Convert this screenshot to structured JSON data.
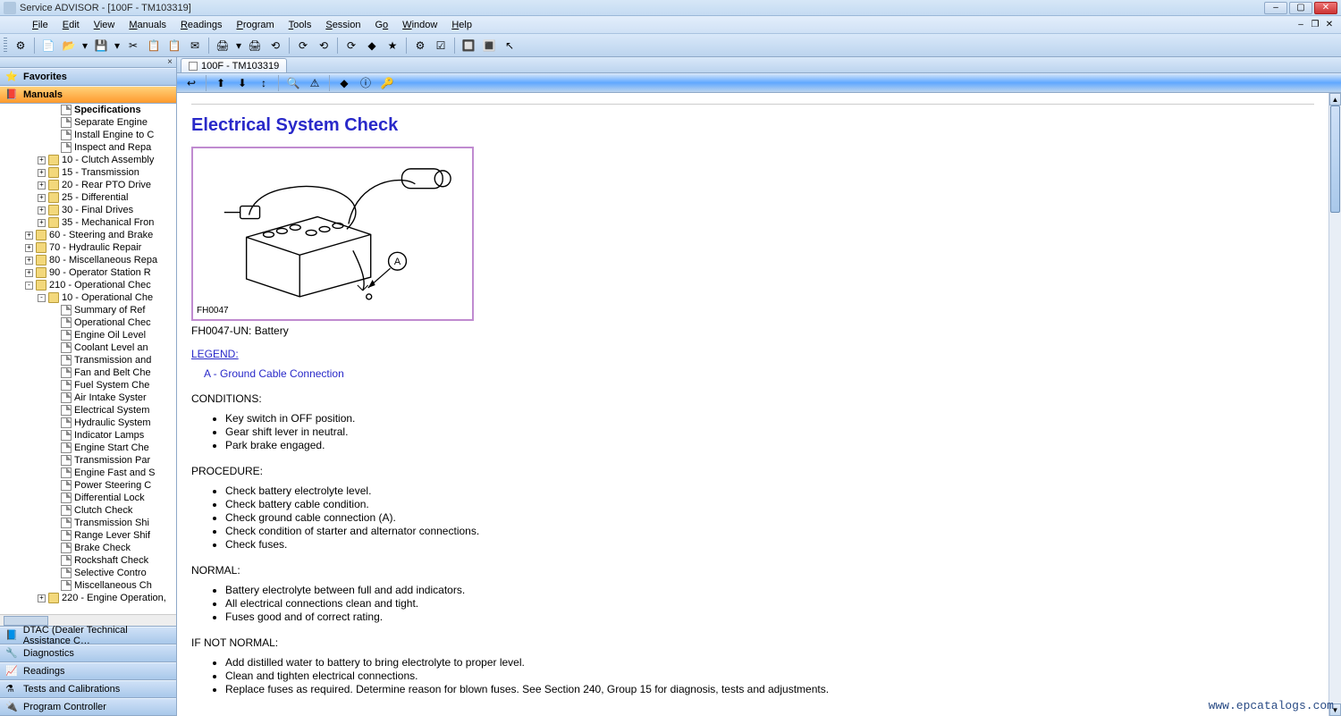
{
  "window": {
    "title": "Service ADVISOR - [100F - TM103319]",
    "min_icon": "–",
    "max_icon": "▢",
    "close_icon": "✕",
    "mdi_min": "–",
    "mdi_restore": "❐",
    "mdi_close": "✕"
  },
  "menu": {
    "items": [
      "File",
      "Edit",
      "View",
      "Manuals",
      "Readings",
      "Program",
      "Tools",
      "Session",
      "Go",
      "Window",
      "Help"
    ]
  },
  "toolbar": {
    "icons": [
      "⚙",
      "📄",
      "📂",
      "▾",
      "💾",
      "▾",
      "✂",
      "📋",
      "📋",
      "✉",
      "🖨",
      "▾",
      "🖨",
      "⟲",
      "⟳",
      "⟲",
      "⟳",
      "◆",
      "★",
      "⚙",
      "☑",
      "🔲",
      "🔳",
      "↖"
    ]
  },
  "left": {
    "close_glyph": "×",
    "accordions": {
      "favorites": {
        "label": "Favorites",
        "icon": "⭐"
      },
      "manuals": {
        "label": "Manuals",
        "icon": "📕"
      },
      "dtac": {
        "label": "DTAC (Dealer Technical Assistance C…",
        "icon": "📘"
      },
      "diagnostics": {
        "label": "Diagnostics",
        "icon": "🔧"
      },
      "readings": {
        "label": "Readings",
        "icon": "📈"
      },
      "tests": {
        "label": "Tests and Calibrations",
        "icon": "⚗"
      },
      "program": {
        "label": "Program Controller",
        "icon": "🔌"
      }
    },
    "tree": [
      {
        "d": 4,
        "t": "page",
        "exp": "",
        "bold": true,
        "label": "Specifications"
      },
      {
        "d": 4,
        "t": "page",
        "exp": "",
        "label": "Separate Engine"
      },
      {
        "d": 4,
        "t": "page",
        "exp": "",
        "label": "Install Engine to C"
      },
      {
        "d": 4,
        "t": "page",
        "exp": "",
        "label": "Inspect and Repa"
      },
      {
        "d": 3,
        "t": "folder",
        "exp": "+",
        "label": "10 - Clutch Assembly"
      },
      {
        "d": 3,
        "t": "folder",
        "exp": "+",
        "label": "15 - Transmission"
      },
      {
        "d": 3,
        "t": "folder",
        "exp": "+",
        "label": "20 - Rear PTO Drive"
      },
      {
        "d": 3,
        "t": "folder",
        "exp": "+",
        "label": "25 - Differential"
      },
      {
        "d": 3,
        "t": "folder",
        "exp": "+",
        "label": "30 - Final Drives"
      },
      {
        "d": 3,
        "t": "folder",
        "exp": "+",
        "label": "35 - Mechanical Fron"
      },
      {
        "d": 2,
        "t": "folder",
        "exp": "+",
        "label": "60 - Steering and Brake"
      },
      {
        "d": 2,
        "t": "folder",
        "exp": "+",
        "label": "70 - Hydraulic Repair"
      },
      {
        "d": 2,
        "t": "folder",
        "exp": "+",
        "label": "80 - Miscellaneous Repa"
      },
      {
        "d": 2,
        "t": "folder",
        "exp": "+",
        "label": "90 - Operator Station R"
      },
      {
        "d": 2,
        "t": "folder",
        "exp": "-",
        "label": "210 - Operational Chec"
      },
      {
        "d": 3,
        "t": "folder",
        "exp": "-",
        "label": "10 - Operational Che"
      },
      {
        "d": 4,
        "t": "page",
        "exp": "",
        "label": "Summary of Ref"
      },
      {
        "d": 4,
        "t": "page",
        "exp": "",
        "label": "Operational Chec"
      },
      {
        "d": 4,
        "t": "page",
        "exp": "",
        "label": "Engine Oil Level"
      },
      {
        "d": 4,
        "t": "page",
        "exp": "",
        "label": "Coolant Level an"
      },
      {
        "d": 4,
        "t": "page",
        "exp": "",
        "label": "Transmission and"
      },
      {
        "d": 4,
        "t": "page",
        "exp": "",
        "label": "Fan and Belt Che"
      },
      {
        "d": 4,
        "t": "page",
        "exp": "",
        "label": "Fuel System Che"
      },
      {
        "d": 4,
        "t": "page",
        "exp": "",
        "label": "Air Intake Syster"
      },
      {
        "d": 4,
        "t": "page",
        "exp": "",
        "label": "Electrical System"
      },
      {
        "d": 4,
        "t": "page",
        "exp": "",
        "label": "Hydraulic System"
      },
      {
        "d": 4,
        "t": "page",
        "exp": "",
        "label": "Indicator Lamps"
      },
      {
        "d": 4,
        "t": "page",
        "exp": "",
        "label": "Engine Start Che"
      },
      {
        "d": 4,
        "t": "page",
        "exp": "",
        "label": "Transmission Par"
      },
      {
        "d": 4,
        "t": "page",
        "exp": "",
        "label": "Engine Fast and S"
      },
      {
        "d": 4,
        "t": "page",
        "exp": "",
        "label": "Power Steering C"
      },
      {
        "d": 4,
        "t": "page",
        "exp": "",
        "label": "Differential Lock"
      },
      {
        "d": 4,
        "t": "page",
        "exp": "",
        "label": "Clutch Check"
      },
      {
        "d": 4,
        "t": "page",
        "exp": "",
        "label": "Transmission Shi"
      },
      {
        "d": 4,
        "t": "page",
        "exp": "",
        "label": "Range Lever Shif"
      },
      {
        "d": 4,
        "t": "page",
        "exp": "",
        "label": "Brake Check"
      },
      {
        "d": 4,
        "t": "page",
        "exp": "",
        "label": "Rockshaft Check"
      },
      {
        "d": 4,
        "t": "page",
        "exp": "",
        "label": "Selective Contro"
      },
      {
        "d": 4,
        "t": "page",
        "exp": "",
        "label": "Miscellaneous Ch"
      },
      {
        "d": 3,
        "t": "folder",
        "exp": "+",
        "label": "220 - Engine Operation,"
      }
    ]
  },
  "doc": {
    "tab": {
      "label": "100F - TM103319"
    },
    "toolbar_icons": [
      "↩",
      "|",
      "⬆",
      "⬇",
      "↕",
      "|",
      "🔍",
      "⚠",
      "|",
      "◆",
      "ⓘ",
      "🔑"
    ],
    "title": "Electrical System Check",
    "figure": {
      "ref": "FH0047",
      "caption": "FH0047-UN: Battery",
      "callout": "A"
    },
    "legend": {
      "heading": "LEGEND:",
      "items": [
        "A - Ground Cable Connection"
      ]
    },
    "sections": [
      {
        "heading": "CONDITIONS:",
        "items": [
          "Key switch in OFF position.",
          "Gear shift lever in neutral.",
          "Park brake engaged."
        ]
      },
      {
        "heading": "PROCEDURE:",
        "items": [
          "Check battery electrolyte level.",
          "Check battery cable condition.",
          "Check ground cable connection (A).",
          "Check condition of starter and alternator connections.",
          "Check fuses."
        ]
      },
      {
        "heading": "NORMAL:",
        "items": [
          "Battery electrolyte between full and add indicators.",
          "All electrical connections clean and tight.",
          "Fuses good and of correct rating."
        ]
      },
      {
        "heading": "IF NOT NORMAL:",
        "items": [
          "Add distilled water to battery to bring electrolyte to proper level.",
          "Clean and tighten electrical connections.",
          "Replace fuses as required. Determine reason for blown fuses. See Section 240, Group 15 for diagnosis, tests and adjustments."
        ]
      }
    ]
  },
  "watermark": "www.epcatalogs.com",
  "colors": {
    "title_blue": "#2929c9",
    "accent_orange": "#ff9a2e",
    "figure_border": "#c08bd0"
  }
}
